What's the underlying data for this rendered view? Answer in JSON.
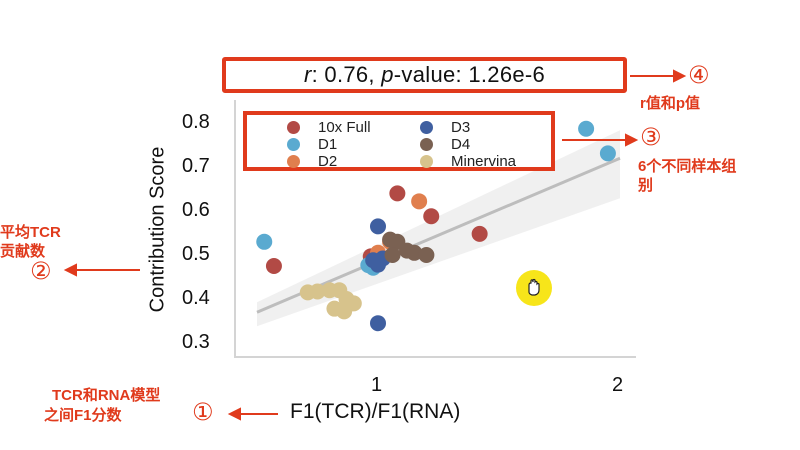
{
  "stat": {
    "r_symbol": "r",
    "r_text": ": 0.76, ",
    "p_symbol": "p",
    "p_text": "-value: 1.26e-6"
  },
  "axes": {
    "ylabel": "Contribution Score",
    "xlabel": "F1(TCR)/F1(RNA)",
    "yticks": [
      "0.8",
      "0.7",
      "0.6",
      "0.5",
      "0.4",
      "0.3"
    ],
    "xticks": [
      "1",
      "2"
    ]
  },
  "legend": [
    {
      "name": "10x Full",
      "color": "#b24a45"
    },
    {
      "name": "D3",
      "color": "#3f5fa0"
    },
    {
      "name": "D1",
      "color": "#5aaad0"
    },
    {
      "name": "D4",
      "color": "#7a6152"
    },
    {
      "name": "D2",
      "color": "#e07f4e"
    },
    {
      "name": "Minervina",
      "color": "#d7c38c"
    }
  ],
  "annotations": {
    "a1_text_line1": "TCR和RNA模型",
    "a1_text_line2": "之间F1分数",
    "a1_num": "①",
    "a2_text_line1": "平均TCR",
    "a2_text_line2": "贡献数",
    "a2_num": "②",
    "a3_num": "③",
    "a3_text_line1": "6个不同样本组",
    "a3_text_line2": "别",
    "a4_num": "④",
    "a4_text": "r值和p值"
  },
  "chart_data": {
    "type": "scatter",
    "title": "",
    "xlabel": "F1(TCR)/F1(RNA)",
    "ylabel": "Contribution Score",
    "xlim": [
      0.45,
      2.05
    ],
    "ylim": [
      0.27,
      0.84
    ],
    "xticks": [
      1,
      2
    ],
    "yticks": [
      0.3,
      0.4,
      0.5,
      0.6,
      0.7,
      0.8
    ],
    "stats": {
      "r": 0.76,
      "p_value": "1.26e-6"
    },
    "regression_line": {
      "x": [
        0.5,
        2.0
      ],
      "y": [
        0.37,
        0.72
      ]
    },
    "series": [
      {
        "name": "10x Full",
        "color": "#b24a45",
        "points": [
          [
            0.57,
            0.475
          ],
          [
            1.08,
            0.64
          ],
          [
            1.22,
            0.588
          ],
          [
            1.42,
            0.548
          ],
          [
            0.97,
            0.497
          ]
        ]
      },
      {
        "name": "D1",
        "color": "#5aaad0",
        "points": [
          [
            0.53,
            0.53
          ],
          [
            1.86,
            0.787
          ],
          [
            1.95,
            0.731
          ],
          [
            0.98,
            0.471
          ],
          [
            0.96,
            0.477
          ]
        ]
      },
      {
        "name": "D2",
        "color": "#e07f4e",
        "points": [
          [
            1.17,
            0.622
          ],
          [
            1.0,
            0.505
          ],
          [
            1.05,
            0.53
          ]
        ]
      },
      {
        "name": "D3",
        "color": "#3f5fa0",
        "points": [
          [
            1.0,
            0.565
          ],
          [
            1.0,
            0.478
          ],
          [
            1.0,
            0.345
          ],
          [
            1.02,
            0.492
          ],
          [
            0.98,
            0.488
          ]
        ]
      },
      {
        "name": "D4",
        "color": "#7a6152",
        "points": [
          [
            1.05,
            0.535
          ],
          [
            1.08,
            0.53
          ],
          [
            1.15,
            0.505
          ],
          [
            1.2,
            0.5
          ],
          [
            1.06,
            0.5
          ],
          [
            1.12,
            0.51
          ]
        ]
      },
      {
        "name": "Minervina",
        "color": "#d7c38c",
        "points": [
          [
            0.75,
            0.417
          ],
          [
            0.8,
            0.42
          ],
          [
            0.84,
            0.42
          ],
          [
            0.87,
            0.4
          ],
          [
            0.89,
            0.39
          ],
          [
            0.9,
            0.39
          ],
          [
            0.86,
            0.372
          ],
          [
            0.82,
            0.378
          ],
          [
            0.71,
            0.415
          ]
        ]
      }
    ]
  }
}
